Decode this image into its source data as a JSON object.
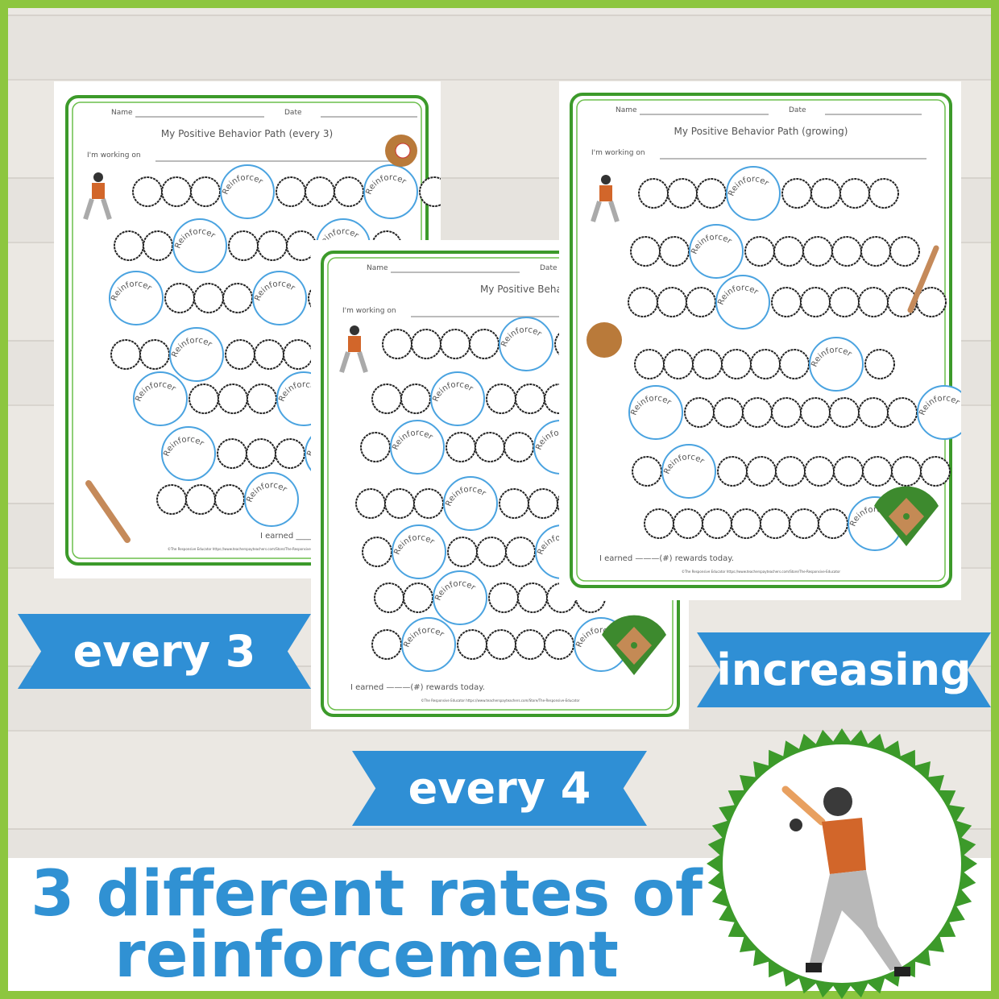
{
  "sheets": [
    {
      "id": "every3",
      "name_label": "Name",
      "date_label": "Date",
      "title": "My Positive Behavior Path (every 3)",
      "working_on": "I'm working on",
      "earned": "I earned ____",
      "footer": "©The Responsive Educator https://www.teacherspayteachers.com/Store/The-Responsive-Educator",
      "rows": [
        "oooRoooRo",
        "ooRoooRo",
        "RoooRo",
        "ooRoooR",
        "RoooRo",
        "RoooRo",
        "oooR"
      ]
    },
    {
      "id": "every4",
      "name_label": "Name",
      "date_label": "Date",
      "title": "My Positive Behavior Path (ever",
      "working_on": "I'm working on",
      "earned": "I earned ———(#) rewards today.",
      "footer": "©The Responsive Educator https://www.teacherspayteachers.com/Store/The-Responsive-Educator",
      "rows": [
        "ooooRo",
        "ooRoooo",
        "oRoooRo",
        "oooRoooo",
        "oRoooRo",
        "ooRoooo",
        "oRooooR"
      ]
    },
    {
      "id": "growing",
      "name_label": "Name",
      "date_label": "Date",
      "title": "My Positive Behavior Path (growing)",
      "working_on": "I'm working on",
      "earned": "I earned ———(#) rewards today.",
      "footer": "©The Responsive Educator https://www.teacherspayteachers.com/Store/The-Responsive-Educator",
      "rows": [
        "oooRoooo",
        "ooRoooooo",
        "oooRoooooo",
        "ooooooRo",
        "RooooooooR",
        "oRoooooooo",
        "oooooooR"
      ]
    }
  ],
  "reinforcer_label": "Reinforcer",
  "banners": {
    "every3": "every 3",
    "increasing": "increasing",
    "every4": "every 4"
  },
  "headline": {
    "line1": "3 different rates of",
    "line2": "reinforcement"
  },
  "colors": {
    "border": "#8dc63f",
    "blue": "#2f8fd5",
    "frame_green": "#3c9a2a",
    "batter_orange": "#d2662a"
  }
}
